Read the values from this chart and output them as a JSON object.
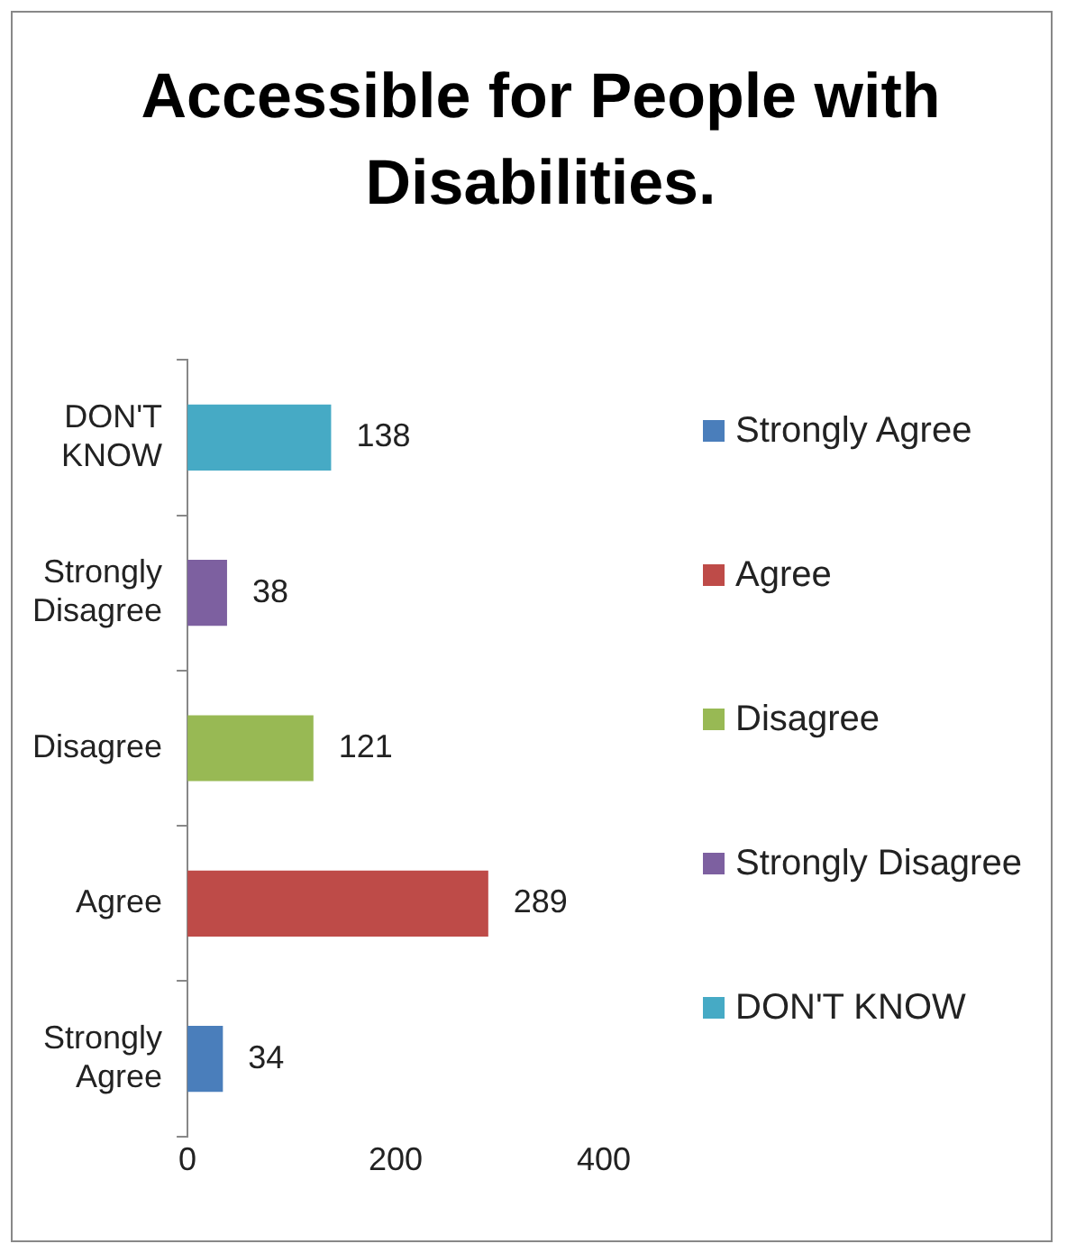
{
  "chart_data": {
    "type": "bar",
    "orientation": "horizontal",
    "stacked": true,
    "title": "Accessible for People with Disabilities.",
    "categories": [
      "DON'T KNOW",
      "Strongly Disagree",
      "Disagree",
      "Agree",
      "Strongly Agree"
    ],
    "series": [
      {
        "name": "Strongly Agree",
        "color": "#4a7ebb",
        "values": [
          null,
          null,
          null,
          null,
          34
        ]
      },
      {
        "name": "Agree",
        "color": "#be4b48",
        "values": [
          null,
          null,
          null,
          289,
          null
        ]
      },
      {
        "name": "Disagree",
        "color": "#98b954",
        "values": [
          null,
          null,
          121,
          null,
          null
        ]
      },
      {
        "name": "Strongly Disagree",
        "color": "#7d60a0",
        "values": [
          null,
          38,
          null,
          null,
          null
        ]
      },
      {
        "name": "DON'T KNOW",
        "color": "#46aac5",
        "values": [
          138,
          null,
          null,
          null,
          null
        ]
      }
    ],
    "xlim": [
      0,
      400
    ],
    "xticks": [
      0,
      200,
      400
    ],
    "grid": false,
    "legend": "right",
    "data_labels": true
  }
}
